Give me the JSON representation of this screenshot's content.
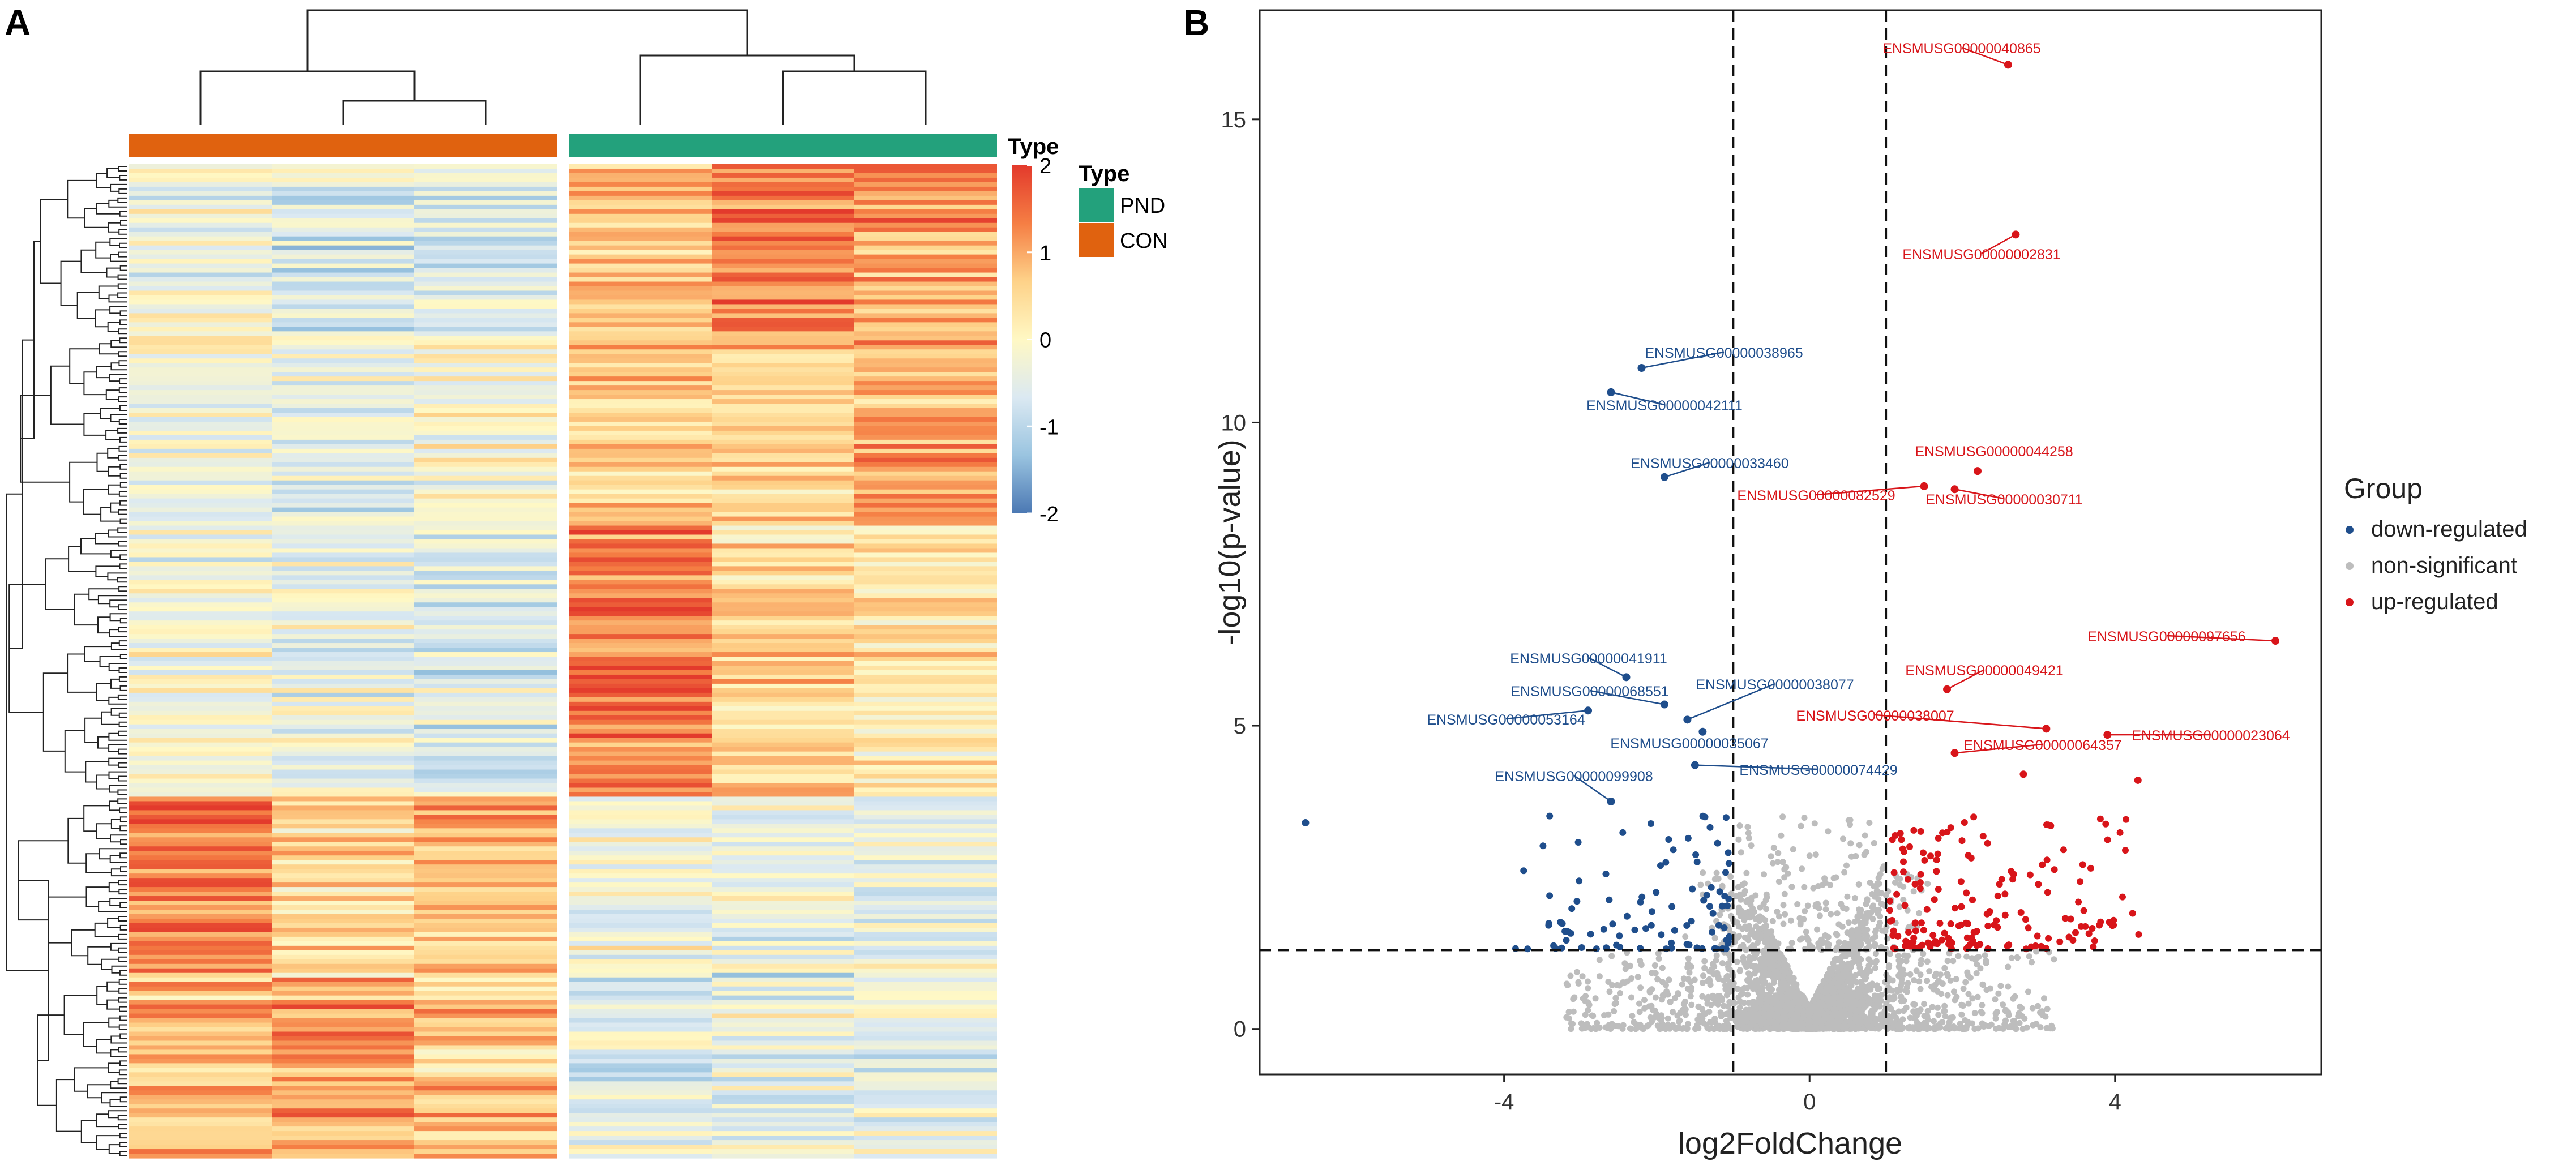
{
  "panel_labels": {
    "a": "A",
    "b": "B"
  },
  "chart_data": [
    {
      "type": "heatmap",
      "panel": "A",
      "annotation_title": "Type",
      "legend_title": "Type",
      "groups": [
        {
          "name": "CON",
          "columns": 3,
          "color": "#e0620f"
        },
        {
          "name": "PND",
          "columns": 3,
          "color": "#23a17c"
        }
      ],
      "legend_groups": [
        "PND",
        "CON"
      ],
      "colorbar": {
        "min": -2,
        "max": 2,
        "ticks": [
          "2",
          "1",
          "0",
          "-1",
          "-2"
        ],
        "colors": [
          "#e33a2c",
          "#f57e44",
          "#fed289",
          "#fff8c4",
          "#dbe9f2",
          "#9ac4e0",
          "#4b78b3"
        ]
      },
      "n_rows": 220,
      "seed": 20230407,
      "row_blocks": [
        {
          "rows": 38,
          "means": [
            -0.2,
            -0.7,
            -0.6,
            0.8,
            1.3,
            1.1
          ]
        },
        {
          "rows": 42,
          "means": [
            -0.3,
            -0.5,
            -0.1,
            0.6,
            0.6,
            0.9
          ]
        },
        {
          "rows": 60,
          "means": [
            -0.2,
            -0.4,
            -0.6,
            1.4,
            0.5,
            0.3
          ]
        },
        {
          "rows": 40,
          "means": [
            1.4,
            0.6,
            0.8,
            -0.2,
            -0.5,
            -0.4
          ]
        },
        {
          "rows": 40,
          "means": [
            0.8,
            1.1,
            0.7,
            -0.5,
            -0.3,
            -0.4
          ]
        }
      ]
    },
    {
      "type": "scatter",
      "panel": "B",
      "xlabel": "log2FoldChange",
      "ylabel": "-log10(p-value)",
      "xlim": [
        -7.2,
        6.7
      ],
      "ylim": [
        -0.75,
        16.8
      ],
      "xticks": [
        -4,
        0,
        4
      ],
      "yticks": [
        0,
        5,
        10,
        15
      ],
      "thresholds": {
        "x": [
          -1,
          1
        ],
        "y": 1.3
      },
      "legend_title": "Group",
      "series": [
        {
          "name": "down-regulated",
          "color": "#1f4e8c"
        },
        {
          "name": "non-significant",
          "color": "#bdbdbd"
        },
        {
          "name": "up-regulated",
          "color": "#d8151a"
        }
      ],
      "labeled_points": [
        {
          "gene": "ENSMUSG00000040865",
          "x": 2.6,
          "y": 15.9,
          "group": "up-regulated"
        },
        {
          "gene": "ENSMUSG00000002831",
          "x": 2.7,
          "y": 13.1,
          "group": "up-regulated"
        },
        {
          "gene": "ENSMUSG00000038965",
          "x": -2.2,
          "y": 10.9,
          "group": "down-regulated"
        },
        {
          "gene": "ENSMUSG00000042111",
          "x": -2.6,
          "y": 10.5,
          "group": "down-regulated"
        },
        {
          "gene": "ENSMUSG00000044258",
          "x": 2.2,
          "y": 9.2,
          "group": "up-regulated"
        },
        {
          "gene": "ENSMUSG00000033460",
          "x": -1.9,
          "y": 9.1,
          "group": "down-regulated"
        },
        {
          "gene": "ENSMUSG00000082529",
          "x": 1.5,
          "y": 8.95,
          "group": "up-regulated"
        },
        {
          "gene": "ENSMUSG00000030711",
          "x": 1.9,
          "y": 8.9,
          "group": "up-regulated"
        },
        {
          "gene": "ENSMUSG00000097656",
          "x": 6.1,
          "y": 6.4,
          "group": "up-regulated"
        },
        {
          "gene": "ENSMUSG00000041911",
          "x": -2.4,
          "y": 5.8,
          "group": "down-regulated"
        },
        {
          "gene": "ENSMUSG00000049421",
          "x": 1.8,
          "y": 5.6,
          "group": "up-regulated"
        },
        {
          "gene": "ENSMUSG00000068551",
          "x": -1.9,
          "y": 5.35,
          "group": "down-regulated"
        },
        {
          "gene": "ENSMUSG00000038077",
          "x": -1.6,
          "y": 5.1,
          "group": "down-regulated"
        },
        {
          "gene": "ENSMUSG00000053164",
          "x": -2.9,
          "y": 5.25,
          "group": "down-regulated"
        },
        {
          "gene": "ENSMUSG00000038007",
          "x": 3.1,
          "y": 4.95,
          "group": "up-regulated"
        },
        {
          "gene": "ENSMUSG00000023064",
          "x": 3.9,
          "y": 4.85,
          "group": "up-regulated"
        },
        {
          "gene": "ENSMUSG00000035067",
          "x": -1.4,
          "y": 4.9,
          "group": "down-regulated"
        },
        {
          "gene": "ENSMUSG00000064357",
          "x": 1.9,
          "y": 4.55,
          "group": "up-regulated"
        },
        {
          "gene": "ENSMUSG00000074429",
          "x": -1.5,
          "y": 4.35,
          "group": "down-regulated"
        },
        {
          "gene": "ENSMUSG00000099908",
          "x": -2.6,
          "y": 3.75,
          "group": "down-regulated"
        }
      ],
      "extra_points": [
        {
          "x": -6.6,
          "y": 3.4,
          "group": "down-regulated"
        },
        {
          "x": 4.3,
          "y": 4.1,
          "group": "up-regulated"
        },
        {
          "x": 2.8,
          "y": 4.2,
          "group": "up-regulated"
        }
      ],
      "seed": 77
    }
  ]
}
